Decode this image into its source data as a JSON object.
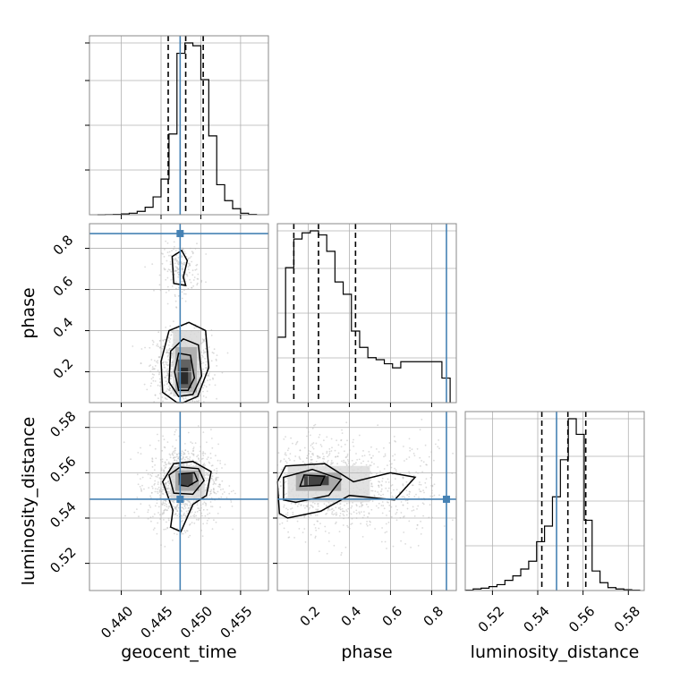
{
  "chart_data": {
    "type": "corner",
    "parameters": [
      "geocent_time",
      "phase",
      "luminosity_distance"
    ],
    "colors": {
      "truth": "#4682b4",
      "hist": "#000000",
      "grid": "#b0b0b0",
      "scatter": "#bdbdbd"
    },
    "axes": {
      "geocent_time": {
        "range": [
          0.436,
          0.4585
        ],
        "ticks": [
          "0.440",
          "0.445",
          "0.450",
          "0.455"
        ],
        "tick_values": [
          0.44,
          0.445,
          0.45,
          0.455
        ]
      },
      "phase": {
        "range": [
          0.05,
          0.92
        ],
        "ticks": [
          "0.2",
          "0.4",
          "0.6",
          "0.8"
        ],
        "tick_values": [
          0.2,
          0.4,
          0.6,
          0.8
        ]
      },
      "luminosity_distance": {
        "range": [
          0.508,
          0.587
        ],
        "ticks": [
          "0.52",
          "0.54",
          "0.56",
          "0.58"
        ],
        "tick_values": [
          0.52,
          0.54,
          0.56,
          0.58
        ]
      }
    },
    "truths": {
      "geocent_time": 0.4474,
      "phase": 0.872,
      "luminosity_distance": 0.5483
    },
    "quantiles": {
      "geocent_time": [
        0.4459,
        0.4481,
        0.4503
      ],
      "phase": [
        0.13,
        0.25,
        0.43
      ],
      "luminosity_distance": [
        0.5418,
        0.5533,
        0.5612
      ]
    },
    "histograms": {
      "geocent_time": {
        "edges": [
          0.437,
          0.438,
          0.439,
          0.44,
          0.441,
          0.442,
          0.443,
          0.444,
          0.445,
          0.446,
          0.447,
          0.448,
          0.449,
          0.45,
          0.451,
          0.452,
          0.453,
          0.454,
          0.455,
          0.456,
          0.457
        ],
        "counts": [
          0,
          1,
          2,
          4,
          8,
          18,
          40,
          95,
          190,
          430,
          860,
          915,
          900,
          720,
          420,
          160,
          75,
          32,
          8,
          2
        ]
      },
      "phase": {
        "edges": [
          0.05,
          0.09,
          0.13,
          0.17,
          0.21,
          0.25,
          0.29,
          0.33,
          0.37,
          0.41,
          0.45,
          0.49,
          0.53,
          0.57,
          0.61,
          0.65,
          0.69,
          0.73,
          0.77,
          0.81,
          0.85,
          0.89
        ],
        "counts": [
          160,
          330,
          400,
          415,
          420,
          410,
          370,
          295,
          265,
          175,
          135,
          110,
          105,
          95,
          85,
          100,
          100,
          100,
          100,
          100,
          60
        ]
      },
      "luminosity_distance": {
        "edges": [
          0.508,
          0.5115,
          0.515,
          0.5185,
          0.522,
          0.5255,
          0.529,
          0.5325,
          0.536,
          0.5395,
          0.543,
          0.5465,
          0.55,
          0.5535,
          0.557,
          0.5605,
          0.564,
          0.5675,
          0.571,
          0.5745,
          0.578,
          0.5815,
          0.585
        ],
        "counts": [
          2,
          8,
          12,
          20,
          30,
          52,
          75,
          110,
          150,
          250,
          330,
          480,
          670,
          880,
          800,
          360,
          100,
          40,
          15,
          8,
          4,
          2
        ]
      }
    }
  }
}
